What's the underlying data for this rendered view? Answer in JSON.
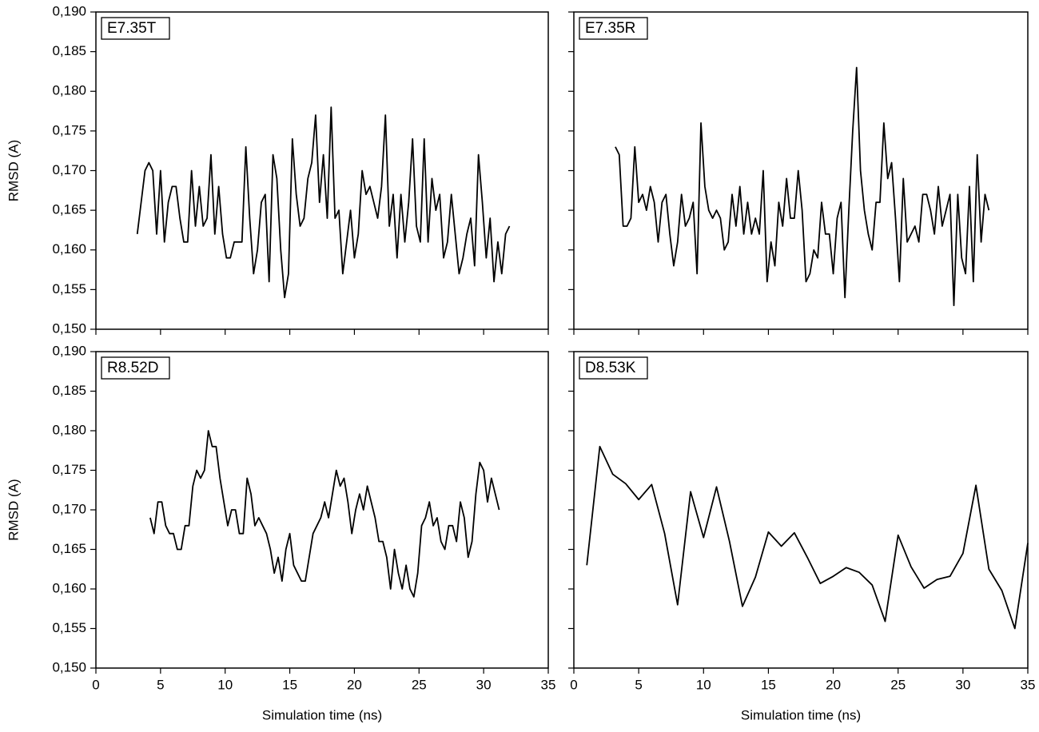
{
  "chart_data": [
    {
      "type": "line",
      "title": "E7.35T",
      "ylabel": "RMSD (A)",
      "color": "#000000",
      "x": [
        3.2,
        3.5,
        3.8,
        4.1,
        4.4,
        4.7,
        5.0,
        5.3,
        5.6,
        5.9,
        6.2,
        6.5,
        6.8,
        7.1,
        7.4,
        7.7,
        8.0,
        8.3,
        8.6,
        8.9,
        9.2,
        9.5,
        9.8,
        10.1,
        10.4,
        10.7,
        11.0,
        11.3,
        11.6,
        11.9,
        12.2,
        12.5,
        12.8,
        13.1,
        13.4,
        13.7,
        14.0,
        14.3,
        14.6,
        14.9,
        15.2,
        15.5,
        15.8,
        16.1,
        16.4,
        16.7,
        17.0,
        17.3,
        17.6,
        17.9,
        18.2,
        18.5,
        18.8,
        19.1,
        19.4,
        19.7,
        20.0,
        20.3,
        20.6,
        20.9,
        21.2,
        21.5,
        21.8,
        22.1,
        22.4,
        22.7,
        23.0,
        23.3,
        23.6,
        23.9,
        24.2,
        24.5,
        24.8,
        25.1,
        25.4,
        25.7,
        26.0,
        26.3,
        26.6,
        26.9,
        27.2,
        27.5,
        27.8,
        28.1,
        28.4,
        28.7,
        29.0,
        29.3,
        29.6,
        29.9,
        30.2,
        30.5,
        30.8,
        31.1,
        31.4,
        31.7,
        32.0
      ],
      "values": [
        0.162,
        0.166,
        0.17,
        0.171,
        0.17,
        0.162,
        0.17,
        0.161,
        0.166,
        0.168,
        0.168,
        0.164,
        0.161,
        0.161,
        0.17,
        0.163,
        0.168,
        0.163,
        0.164,
        0.172,
        0.162,
        0.168,
        0.162,
        0.159,
        0.159,
        0.161,
        0.161,
        0.161,
        0.173,
        0.164,
        0.157,
        0.16,
        0.166,
        0.167,
        0.156,
        0.172,
        0.169,
        0.16,
        0.154,
        0.157,
        0.174,
        0.167,
        0.163,
        0.164,
        0.169,
        0.171,
        0.177,
        0.166,
        0.172,
        0.164,
        0.178,
        0.164,
        0.165,
        0.157,
        0.161,
        0.165,
        0.159,
        0.162,
        0.17,
        0.167,
        0.168,
        0.166,
        0.164,
        0.168,
        0.177,
        0.163,
        0.167,
        0.159,
        0.167,
        0.161,
        0.166,
        0.174,
        0.163,
        0.161,
        0.174,
        0.161,
        0.169,
        0.165,
        0.167,
        0.159,
        0.161,
        0.167,
        0.162,
        0.157,
        0.159,
        0.162,
        0.164,
        0.158,
        0.172,
        0.166,
        0.159,
        0.164,
        0.156,
        0.161,
        0.157,
        0.162,
        0.163
      ],
      "xlim": [
        0,
        35
      ],
      "xticks": [
        0,
        5,
        10,
        15,
        20,
        25,
        30,
        35
      ],
      "xtick_labels": false,
      "ylim": [
        0.15,
        0.19
      ],
      "yticks": [
        {
          "value": 0.15,
          "label": "0,150"
        },
        {
          "value": 0.155,
          "label": "0,155"
        },
        {
          "value": 0.16,
          "label": "0,160"
        },
        {
          "value": 0.165,
          "label": "0,165"
        },
        {
          "value": 0.17,
          "label": "0,170"
        },
        {
          "value": 0.175,
          "label": "0,175"
        },
        {
          "value": 0.18,
          "label": "0,180"
        },
        {
          "value": 0.185,
          "label": "0,185"
        },
        {
          "value": 0.19,
          "label": "0,190"
        }
      ]
    },
    {
      "type": "line",
      "title": "E7.35R",
      "color": "#000000",
      "x": [
        3.2,
        3.5,
        3.8,
        4.1,
        4.4,
        4.7,
        5.0,
        5.3,
        5.6,
        5.9,
        6.2,
        6.5,
        6.8,
        7.1,
        7.4,
        7.7,
        8.0,
        8.3,
        8.6,
        8.9,
        9.2,
        9.5,
        9.8,
        10.1,
        10.4,
        10.7,
        11.0,
        11.3,
        11.6,
        11.9,
        12.2,
        12.5,
        12.8,
        13.1,
        13.4,
        13.7,
        14.0,
        14.3,
        14.6,
        14.9,
        15.2,
        15.5,
        15.8,
        16.1,
        16.4,
        16.7,
        17.0,
        17.3,
        17.6,
        17.9,
        18.2,
        18.5,
        18.8,
        19.1,
        19.4,
        19.7,
        20.0,
        20.3,
        20.6,
        20.9,
        21.2,
        21.5,
        21.8,
        22.1,
        22.4,
        22.7,
        23.0,
        23.3,
        23.6,
        23.9,
        24.2,
        24.5,
        24.8,
        25.1,
        25.4,
        25.7,
        26.0,
        26.3,
        26.6,
        26.9,
        27.2,
        27.5,
        27.8,
        28.1,
        28.4,
        28.7,
        29.0,
        29.3,
        29.6,
        29.9,
        30.2,
        30.5,
        30.8,
        31.1,
        31.4,
        31.7,
        32.0
      ],
      "values": [
        0.173,
        0.172,
        0.163,
        0.163,
        0.164,
        0.173,
        0.166,
        0.167,
        0.165,
        0.168,
        0.166,
        0.161,
        0.166,
        0.167,
        0.162,
        0.158,
        0.161,
        0.167,
        0.163,
        0.164,
        0.166,
        0.157,
        0.176,
        0.168,
        0.165,
        0.164,
        0.165,
        0.164,
        0.16,
        0.161,
        0.167,
        0.163,
        0.168,
        0.162,
        0.166,
        0.162,
        0.164,
        0.162,
        0.17,
        0.156,
        0.161,
        0.158,
        0.166,
        0.163,
        0.169,
        0.164,
        0.164,
        0.17,
        0.165,
        0.156,
        0.157,
        0.16,
        0.159,
        0.166,
        0.162,
        0.162,
        0.157,
        0.164,
        0.166,
        0.154,
        0.165,
        0.175,
        0.183,
        0.17,
        0.165,
        0.162,
        0.16,
        0.166,
        0.166,
        0.176,
        0.169,
        0.171,
        0.164,
        0.156,
        0.169,
        0.161,
        0.162,
        0.163,
        0.161,
        0.167,
        0.167,
        0.165,
        0.162,
        0.168,
        0.163,
        0.165,
        0.167,
        0.153,
        0.167,
        0.159,
        0.157,
        0.168,
        0.156,
        0.172,
        0.161,
        0.167,
        0.165
      ],
      "xlim": [
        0,
        35
      ],
      "xticks": [
        0,
        5,
        10,
        15,
        20,
        25,
        30,
        35
      ],
      "xtick_labels": false,
      "ylim": [
        0.15,
        0.19
      ],
      "yticks": [
        0.15,
        0.155,
        0.16,
        0.165,
        0.17,
        0.175,
        0.18,
        0.185,
        0.19
      ]
    },
    {
      "type": "line",
      "title": "R8.52D",
      "ylabel": "RMSD (A)",
      "xlabel": "Simulation time (ns)",
      "color": "#000000",
      "x": [
        4.2,
        4.5,
        4.8,
        5.1,
        5.4,
        5.7,
        6.0,
        6.3,
        6.6,
        6.9,
        7.2,
        7.5,
        7.8,
        8.1,
        8.4,
        8.7,
        9.0,
        9.3,
        9.6,
        9.9,
        10.2,
        10.5,
        10.8,
        11.1,
        11.4,
        11.7,
        12.0,
        12.3,
        12.6,
        12.9,
        13.2,
        13.5,
        13.8,
        14.1,
        14.4,
        14.7,
        15.0,
        15.3,
        15.6,
        15.9,
        16.2,
        16.5,
        16.8,
        17.1,
        17.4,
        17.7,
        18.0,
        18.3,
        18.6,
        18.9,
        19.2,
        19.5,
        19.8,
        20.1,
        20.4,
        20.7,
        21.0,
        21.3,
        21.6,
        21.9,
        22.2,
        22.5,
        22.8,
        23.1,
        23.4,
        23.7,
        24.0,
        24.3,
        24.6,
        24.9,
        25.2,
        25.5,
        25.8,
        26.1,
        26.4,
        26.7,
        27.0,
        27.3,
        27.6,
        27.9,
        28.2,
        28.5,
        28.8,
        29.1,
        29.4,
        29.7,
        30.0,
        30.3,
        30.6,
        30.9,
        31.2
      ],
      "values": [
        0.169,
        0.167,
        0.171,
        0.171,
        0.168,
        0.167,
        0.167,
        0.165,
        0.165,
        0.168,
        0.168,
        0.173,
        0.175,
        0.174,
        0.175,
        0.18,
        0.178,
        0.178,
        0.174,
        0.171,
        0.168,
        0.17,
        0.17,
        0.167,
        0.167,
        0.174,
        0.172,
        0.168,
        0.169,
        0.168,
        0.167,
        0.165,
        0.162,
        0.164,
        0.161,
        0.165,
        0.167,
        0.163,
        0.162,
        0.161,
        0.161,
        0.164,
        0.167,
        0.168,
        0.169,
        0.171,
        0.169,
        0.172,
        0.175,
        0.173,
        0.174,
        0.171,
        0.167,
        0.17,
        0.172,
        0.17,
        0.173,
        0.171,
        0.169,
        0.166,
        0.166,
        0.164,
        0.16,
        0.165,
        0.162,
        0.16,
        0.163,
        0.16,
        0.159,
        0.162,
        0.168,
        0.169,
        0.171,
        0.168,
        0.169,
        0.166,
        0.165,
        0.168,
        0.168,
        0.166,
        0.171,
        0.169,
        0.164,
        0.166,
        0.172,
        0.176,
        0.175,
        0.171,
        0.174,
        0.172,
        0.17
      ],
      "xlim": [
        0,
        35
      ],
      "xticks": [
        0,
        5,
        10,
        15,
        20,
        25,
        30,
        35
      ],
      "xtick_labels": true,
      "ylim": [
        0.15,
        0.19
      ],
      "yticks": [
        {
          "value": 0.15,
          "label": "0,150"
        },
        {
          "value": 0.155,
          "label": "0,155"
        },
        {
          "value": 0.16,
          "label": "0,160"
        },
        {
          "value": 0.165,
          "label": "0,165"
        },
        {
          "value": 0.17,
          "label": "0,170"
        },
        {
          "value": 0.175,
          "label": "0,175"
        },
        {
          "value": 0.18,
          "label": "0,180"
        },
        {
          "value": 0.185,
          "label": "0,185"
        },
        {
          "value": 0.19,
          "label": "0,190"
        }
      ]
    },
    {
      "type": "line",
      "title": "D8.53K",
      "xlabel": "Simulation time (ns)",
      "color": "#000000",
      "x": [
        1,
        2,
        3,
        4,
        5,
        6,
        7,
        8,
        9,
        10,
        11,
        12,
        13,
        14,
        15,
        16,
        17,
        18,
        19,
        20,
        21,
        22,
        23,
        24,
        25,
        26,
        27,
        28,
        29,
        30,
        31,
        32,
        33,
        34,
        35
      ],
      "values": [
        0.163,
        0.178,
        0.1745,
        0.1733,
        0.1713,
        0.1732,
        0.167,
        0.158,
        0.1723,
        0.1665,
        0.1729,
        0.166,
        0.1578,
        0.1615,
        0.1672,
        0.1654,
        0.1671,
        0.164,
        0.1607,
        0.1616,
        0.1627,
        0.1621,
        0.1605,
        0.1559,
        0.1668,
        0.1628,
        0.1601,
        0.1612,
        0.1616,
        0.1645,
        0.1731,
        0.1625,
        0.1598,
        0.155,
        0.1658
      ],
      "xlim": [
        0,
        35
      ],
      "xticks": [
        0,
        5,
        10,
        15,
        20,
        25,
        30,
        35
      ],
      "xtick_labels": true,
      "ylim": [
        0.15,
        0.19
      ],
      "yticks": [
        0.15,
        0.155,
        0.16,
        0.165,
        0.17,
        0.175,
        0.18,
        0.185,
        0.19
      ]
    }
  ]
}
